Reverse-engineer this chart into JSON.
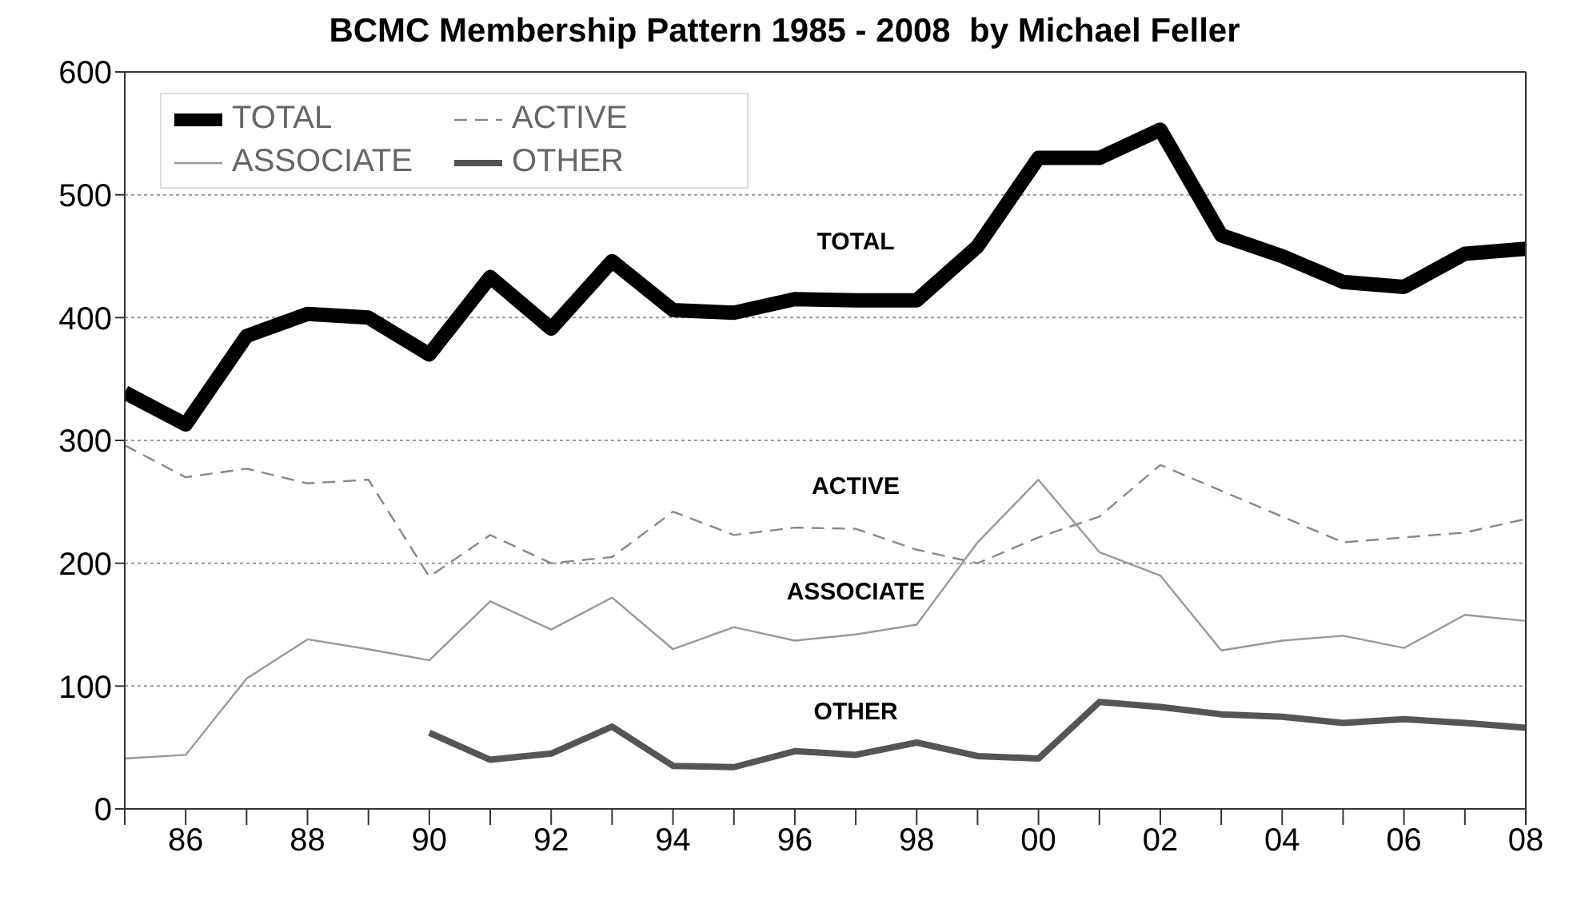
{
  "chart_data": {
    "type": "line",
    "title": "BCMC Membership Pattern 1985 - 2008  by Michael Feller",
    "x": [
      1985,
      1986,
      1987,
      1988,
      1989,
      1990,
      1991,
      1992,
      1993,
      1994,
      1995,
      1996,
      1997,
      1998,
      1999,
      2000,
      2001,
      2002,
      2003,
      2004,
      2005,
      2006,
      2007,
      2008
    ],
    "series": [
      {
        "name": "TOTAL",
        "color": "#000000",
        "line_style": "solid",
        "values": [
          339,
          313,
          385,
          403,
          400,
          370,
          433,
          391,
          446,
          406,
          404,
          415,
          414,
          414,
          458,
          530,
          530,
          553,
          467,
          450,
          429,
          425,
          452,
          456
        ]
      },
      {
        "name": "ACTIVE",
        "color": "#888888",
        "line_style": "dashed",
        "values": [
          296,
          270,
          277,
          265,
          268,
          189,
          223,
          200,
          205,
          242,
          223,
          229,
          228,
          211,
          200,
          221,
          238,
          280,
          259,
          238,
          217,
          221,
          225,
          236
        ]
      },
      {
        "name": "ASSOCIATE",
        "color": "#999999",
        "line_style": "solid",
        "values": [
          41,
          44,
          106,
          138,
          130,
          121,
          169,
          146,
          172,
          130,
          148,
          137,
          142,
          150,
          217,
          268,
          209,
          190,
          129,
          137,
          141,
          131,
          158,
          153
        ]
      },
      {
        "name": "OTHER",
        "color": "#555555",
        "line_style": "solid",
        "values": [
          null,
          null,
          null,
          null,
          null,
          62,
          40,
          45,
          67,
          35,
          34,
          47,
          44,
          54,
          43,
          41,
          87,
          83,
          77,
          75,
          70,
          73,
          70,
          66
        ]
      }
    ],
    "xlim": [
      1985,
      2008
    ],
    "xticks": [
      {
        "value": 1985,
        "label": null
      },
      {
        "value": 1986,
        "label": "86"
      },
      {
        "value": 1987,
        "label": null
      },
      {
        "value": 1988,
        "label": "88"
      },
      {
        "value": 1989,
        "label": null
      },
      {
        "value": 1990,
        "label": "90"
      },
      {
        "value": 1991,
        "label": null
      },
      {
        "value": 1992,
        "label": "92"
      },
      {
        "value": 1993,
        "label": null
      },
      {
        "value": 1994,
        "label": "94"
      },
      {
        "value": 1995,
        "label": null
      },
      {
        "value": 1996,
        "label": "96"
      },
      {
        "value": 1997,
        "label": null
      },
      {
        "value": 1998,
        "label": "98"
      },
      {
        "value": 1999,
        "label": null
      },
      {
        "value": 2000,
        "label": "00"
      },
      {
        "value": 2001,
        "label": null
      },
      {
        "value": 2002,
        "label": "02"
      },
      {
        "value": 2003,
        "label": null
      },
      {
        "value": 2004,
        "label": "04"
      },
      {
        "value": 2005,
        "label": null
      },
      {
        "value": 2006,
        "label": "06"
      },
      {
        "value": 2007,
        "label": null
      },
      {
        "value": 2008,
        "label": "08"
      }
    ],
    "ylim": [
      0,
      600
    ],
    "yticks": [
      0,
      100,
      200,
      300,
      400,
      500,
      600
    ],
    "grid": "y",
    "legend": "top left",
    "marker": "none"
  }
}
